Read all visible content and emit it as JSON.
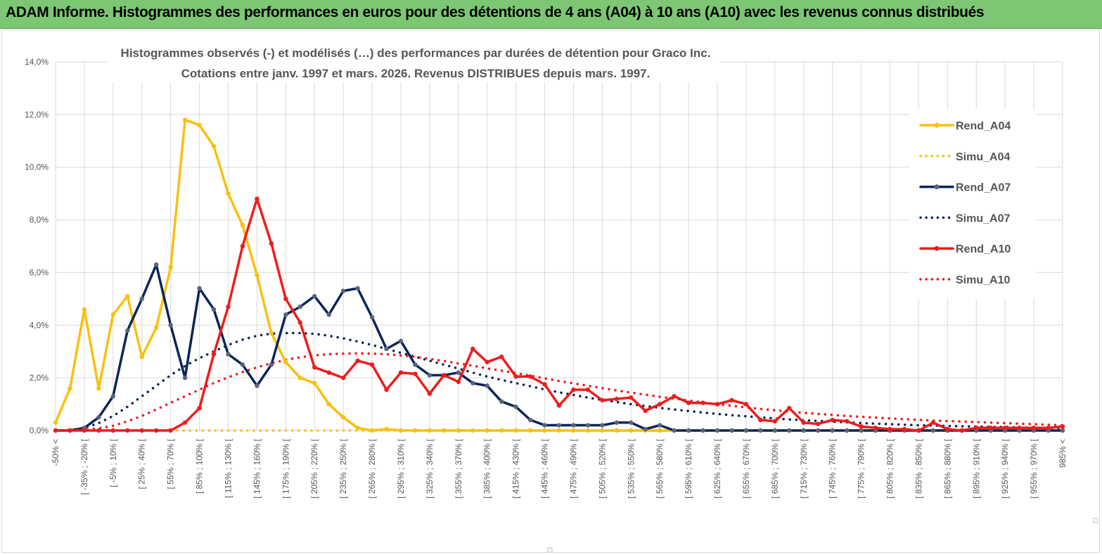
{
  "header": {
    "title": "ADAM Informe. Histogrammes des performances en euros pour des détentions de 4 ans (A04) à 10 ans (A10) avec les revenus connus distribués"
  },
  "chart_data": {
    "type": "line",
    "title_lines": [
      "Histogrammes observés (-) et modélisés (…) des performances par durées de détention pour Graco Inc.",
      "Cotations entre janv. 1997 et mars. 2026. Revenus DISTRIBUES depuis mars. 1997."
    ],
    "xlabel": "",
    "ylabel": "",
    "ylim": [
      0,
      14
    ],
    "y_ticks": [
      "0,0%",
      "2,0%",
      "4,0%",
      "6,0%",
      "8,0%",
      "10,0%",
      "12,0%",
      "14,0%"
    ],
    "categories": [
      "-50% <",
      "[ -50% ; -35% [",
      "[ -35% ; -20% [",
      "[ -20% ; -5% [",
      "[ -5% ; 10% [",
      "[ 10% ; 25% [",
      "[ 25% ; 40% [",
      "[ 40% ; 55% [",
      "[ 55% ; 70% [",
      "[ 70% ; 85% [",
      "[ 85% ; 100% [",
      "[ 100% ; 115% [",
      "[ 115% ; 130% [",
      "[ 130% ; 145% [",
      "[ 145% ; 160% [",
      "[ 160% ; 175% [",
      "[ 175% ; 190% [",
      "[ 190% ; 205% [",
      "[ 205% ; 220% [",
      "[ 220% ; 235% [",
      "[ 235% ; 250% [",
      "[ 250% ; 265% [",
      "[ 265% ; 280% [",
      "[ 280% ; 295% [",
      "[ 295% ; 310% [",
      "[ 310% ; 325% [",
      "[ 325% ; 340% [",
      "[ 340% ; 355% [",
      "[ 355% ; 370% [",
      "[ 370% ; 385% [",
      "[ 385% ; 400% [",
      "[ 400% ; 415% [",
      "[ 415% ; 430% [",
      "[ 430% ; 445% [",
      "[ 445% ; 460% [",
      "[ 460% ; 475% [",
      "[ 475% ; 490% [",
      "[ 490% ; 505% [",
      "[ 505% ; 520% [",
      "[ 520% ; 535% [",
      "[ 535% ; 550% [",
      "[ 550% ; 565% [",
      "[ 565% ; 580% [",
      "[ 580% ; 595% [",
      "[ 595% ; 610% [",
      "[ 610% ; 625% [",
      "[ 625% ; 640% [",
      "[ 640% ; 655% [",
      "[ 655% ; 670% [",
      "[ 670% ; 685% [",
      "[ 685% ; 700% [",
      "[ 700% ; 715% [",
      "[ 715% ; 730% [",
      "[ 730% ; 745% [",
      "[ 745% ; 760% [",
      "[ 760% ; 775% [",
      "[ 775% ; 790% [",
      "[ 790% ; 805% [",
      "[ 805% ; 820% [",
      "[ 820% ; 835% [",
      "[ 835% ; 850% [",
      "[ 850% ; 865% [",
      "[ 865% ; 880% [",
      "[ 880% ; 895% [",
      "[ 895% ; 910% [",
      "[ 910% ; 925% [",
      "[ 925% ; 940% [",
      "[ 940% ; 955% [",
      "[ 955% ; 970% [",
      "[ 970% ; 985% [",
      "985% <"
    ],
    "label_every": 2,
    "series": [
      {
        "name": "Rend_A04",
        "color": "#fbbf0e",
        "style": "solid",
        "markers": true,
        "values": [
          0.3,
          1.6,
          4.6,
          1.6,
          4.4,
          5.1,
          2.8,
          3.9,
          6.2,
          11.8,
          11.6,
          10.8,
          9.0,
          7.8,
          5.9,
          3.7,
          2.6,
          2.0,
          1.8,
          1.0,
          0.5,
          0.1,
          0.0,
          0.05,
          0.0,
          0.0,
          0.0,
          0.0,
          0.0,
          0.0,
          0.0,
          0.0,
          0.0,
          0.0,
          0.0,
          0.0,
          0.0,
          0.0,
          0.0,
          0.0,
          0.0,
          0.0,
          0.0,
          0.0,
          0.0,
          0.0,
          0.0,
          0.0,
          0.0,
          0.0,
          0.0,
          0.0,
          0.0,
          0.0,
          0.0,
          0.0,
          0.0,
          0.0,
          0.0,
          0.0,
          0.0,
          0.0,
          0.0,
          0.0,
          0.0,
          0.0,
          0.0,
          0.0,
          0.0,
          0.0,
          0.0
        ]
      },
      {
        "name": "Simu_A04",
        "color": "#fbbf0e",
        "style": "dotted",
        "markers": false,
        "values": [
          0.0,
          0.0,
          0.0,
          0.0,
          0.0,
          0.0,
          0.0,
          0.0,
          0.0,
          0.0,
          0.0,
          0.0,
          0.0,
          0.0,
          0.0,
          0.0,
          0.0,
          0.0,
          0.0,
          0.0,
          0.0,
          0.0,
          0.0,
          0.0,
          0.0,
          0.0,
          0.0,
          0.0,
          0.0,
          0.0,
          0.0,
          0.0,
          0.0,
          0.0,
          0.0,
          0.0,
          0.0,
          0.0,
          0.0,
          0.0,
          0.0,
          0.0,
          0.0,
          0.0,
          0.0,
          0.0,
          0.0,
          0.0,
          0.0,
          0.0,
          0.0,
          0.0,
          0.0,
          0.0,
          0.0,
          0.0,
          0.0,
          0.0,
          0.0,
          0.0,
          0.0,
          0.0,
          0.0,
          0.0,
          0.0,
          0.0,
          0.0,
          0.0,
          0.0,
          0.0,
          0.0
        ]
      },
      {
        "name": "Rend_A07",
        "color": "#0b2558",
        "style": "solid",
        "markers": true,
        "values": [
          0.0,
          0.0,
          0.1,
          0.5,
          1.3,
          3.8,
          5.0,
          6.3,
          4.0,
          2.0,
          5.4,
          4.6,
          2.9,
          2.5,
          1.7,
          2.5,
          4.4,
          4.7,
          5.1,
          4.4,
          5.3,
          5.4,
          4.3,
          3.1,
          3.4,
          2.5,
          2.1,
          2.1,
          2.2,
          1.8,
          1.7,
          1.1,
          0.9,
          0.4,
          0.2,
          0.2,
          0.2,
          0.2,
          0.2,
          0.3,
          0.3,
          0.05,
          0.2,
          0.0,
          0.0,
          0.0,
          0.0,
          0.0,
          0.0,
          0.0,
          0.0,
          0.0,
          0.0,
          0.0,
          0.0,
          0.0,
          0.0,
          0.0,
          0.0,
          0.0,
          0.0,
          0.0,
          0.0,
          0.0,
          0.0,
          0.0,
          0.0,
          0.0,
          0.0,
          0.0,
          0.0
        ]
      },
      {
        "name": "Simu_A07",
        "color": "#0b2558",
        "style": "dotted",
        "markers": false,
        "values": [
          0.0,
          0.02,
          0.1,
          0.28,
          0.55,
          0.9,
          1.3,
          1.7,
          2.1,
          2.45,
          2.75,
          3.0,
          3.25,
          3.45,
          3.6,
          3.68,
          3.7,
          3.7,
          3.67,
          3.6,
          3.5,
          3.38,
          3.25,
          3.1,
          2.95,
          2.8,
          2.65,
          2.5,
          2.35,
          2.2,
          2.05,
          1.92,
          1.8,
          1.68,
          1.56,
          1.45,
          1.35,
          1.25,
          1.16,
          1.08,
          1.0,
          0.93,
          0.86,
          0.8,
          0.74,
          0.68,
          0.63,
          0.58,
          0.54,
          0.5,
          0.46,
          0.42,
          0.39,
          0.36,
          0.33,
          0.31,
          0.28,
          0.26,
          0.24,
          0.22,
          0.2,
          0.19,
          0.17,
          0.16,
          0.15,
          0.14,
          0.13,
          0.12,
          0.11,
          0.1,
          0.09
        ]
      },
      {
        "name": "Rend_A10",
        "color": "#ee1c1c",
        "style": "solid",
        "markers": true,
        "values": [
          0.0,
          0.0,
          0.0,
          0.0,
          0.0,
          0.0,
          0.0,
          0.0,
          0.0,
          0.3,
          0.85,
          2.9,
          4.7,
          7.0,
          8.8,
          7.1,
          5.0,
          4.1,
          2.4,
          2.2,
          2.0,
          2.65,
          2.5,
          1.55,
          2.2,
          2.15,
          1.4,
          2.1,
          1.85,
          3.1,
          2.6,
          2.8,
          2.05,
          2.05,
          1.75,
          0.95,
          1.55,
          1.55,
          1.15,
          1.2,
          1.25,
          0.75,
          1.0,
          1.3,
          1.05,
          1.05,
          1.0,
          1.15,
          1.0,
          0.4,
          0.35,
          0.85,
          0.3,
          0.25,
          0.4,
          0.35,
          0.15,
          0.1,
          0.05,
          0.05,
          0.0,
          0.3,
          0.05,
          0.0,
          0.1,
          0.1,
          0.1,
          0.1,
          0.1,
          0.1,
          0.15
        ]
      },
      {
        "name": "Simu_A10",
        "color": "#ee1c1c",
        "style": "dotted",
        "markers": false,
        "values": [
          0.0,
          0.0,
          0.02,
          0.08,
          0.18,
          0.35,
          0.55,
          0.8,
          1.05,
          1.3,
          1.55,
          1.8,
          2.02,
          2.22,
          2.4,
          2.55,
          2.68,
          2.78,
          2.85,
          2.9,
          2.92,
          2.93,
          2.92,
          2.9,
          2.85,
          2.8,
          2.72,
          2.64,
          2.55,
          2.46,
          2.36,
          2.27,
          2.18,
          2.08,
          1.98,
          1.88,
          1.79,
          1.7,
          1.61,
          1.52,
          1.44,
          1.36,
          1.28,
          1.21,
          1.14,
          1.07,
          1.0,
          0.94,
          0.88,
          0.82,
          0.77,
          0.72,
          0.67,
          0.63,
          0.59,
          0.55,
          0.52,
          0.49,
          0.46,
          0.43,
          0.4,
          0.38,
          0.36,
          0.34,
          0.32,
          0.3,
          0.28,
          0.26,
          0.24,
          0.22,
          0.2
        ]
      }
    ],
    "legend_position": "right"
  }
}
